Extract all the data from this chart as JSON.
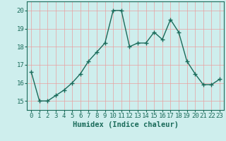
{
  "title": "",
  "xlabel": "Humidex (Indice chaleur)",
  "x": [
    0,
    1,
    2,
    3,
    4,
    5,
    6,
    7,
    8,
    9,
    10,
    11,
    12,
    13,
    14,
    15,
    16,
    17,
    18,
    19,
    20,
    21,
    22,
    23
  ],
  "y": [
    16.6,
    15.0,
    15.0,
    15.3,
    15.6,
    16.0,
    16.5,
    17.2,
    17.7,
    18.2,
    20.0,
    20.0,
    18.0,
    18.2,
    18.2,
    18.8,
    18.4,
    19.5,
    18.8,
    17.2,
    16.5,
    15.9,
    15.9,
    16.2
  ],
  "line_color": "#1a6b5a",
  "marker": "+",
  "marker_size": 4,
  "bg_color": "#ceeeed",
  "grid_color": "#e8a0a0",
  "axis_color": "#1a6b5a",
  "ylim": [
    14.5,
    20.5
  ],
  "yticks": [
    15,
    16,
    17,
    18,
    19,
    20
  ],
  "xticks": [
    0,
    1,
    2,
    3,
    4,
    5,
    6,
    7,
    8,
    9,
    10,
    11,
    12,
    13,
    14,
    15,
    16,
    17,
    18,
    19,
    20,
    21,
    22,
    23
  ],
  "label_fontsize": 7.5,
  "tick_fontsize": 6.5
}
